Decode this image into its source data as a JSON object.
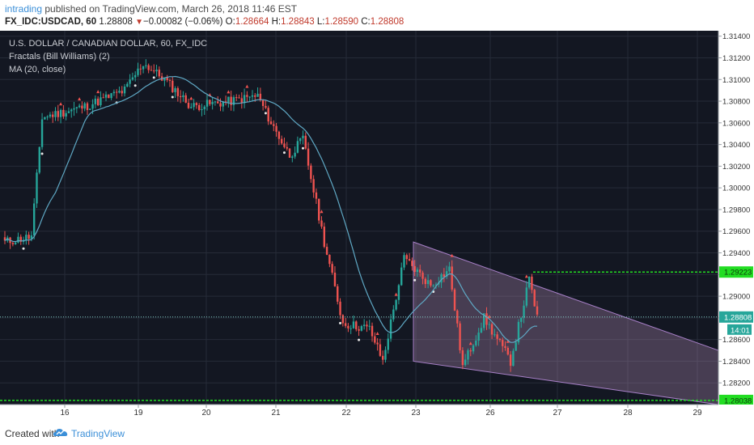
{
  "header": {
    "user": "intrading",
    "published": " published on TradingView.com, March 26, 2018 11:46 EST",
    "symbol": "FX_IDC:USDCAD, 60",
    "last": "1.28808",
    "arrow": "▼",
    "change": "−0.00082 (−0.06%)",
    "o_label": "O:",
    "o_value": "1.28664",
    "h_label": "H:",
    "h_value": "1.28843",
    "l_label": "L:",
    "l_value": "1.28590",
    "c_label": "C:",
    "c_value": "1.28808"
  },
  "legend": {
    "title": "U.S. DOLLAR / CANADIAN DOLLAR, 60, FX_IDC",
    "indicator1": "Fractals (Bill Williams) (2)",
    "indicator2": "MA (20, close)"
  },
  "footer": {
    "created": "Created with",
    "brand": "TradingView",
    "logo": "tradingview-cloud-icon"
  },
  "colors": {
    "background": "#131722",
    "grid": "#262b38",
    "up": "#26a69a",
    "down": "#ef5350",
    "ma": "#5fa8c4",
    "channel_fill": "#b98fb6",
    "channel_line": "#a880c8",
    "level_green": "#22dd22",
    "price_line": "#7fc8c0",
    "axis_text": "#c9ccd2"
  },
  "chart_data": {
    "type": "candlestick",
    "x_tick_labels": [
      "16",
      "19",
      "20",
      "21",
      "22",
      "23",
      "26",
      "27",
      "28",
      "29"
    ],
    "y_tick_labels": [
      "1.31400",
      "1.31200",
      "1.31000",
      "1.30800",
      "1.30600",
      "1.30400",
      "1.30200",
      "1.30000",
      "1.29800",
      "1.29600",
      "1.29400",
      "1.29200",
      "1.29000",
      "1.28800",
      "1.28600",
      "1.28400",
      "1.28200"
    ],
    "ylim": [
      1.28,
      1.3145
    ],
    "key_points": [
      {
        "bar": 0,
        "price": 1.295
      },
      {
        "bar": 10,
        "price": 1.2955
      },
      {
        "bar": 14,
        "price": 1.3065
      },
      {
        "bar": 30,
        "price": 1.3075
      },
      {
        "bar": 45,
        "price": 1.309
      },
      {
        "bar": 52,
        "price": 1.3115
      },
      {
        "bar": 60,
        "price": 1.31
      },
      {
        "bar": 70,
        "price": 1.3075
      },
      {
        "bar": 85,
        "price": 1.308
      },
      {
        "bar": 95,
        "price": 1.3085
      },
      {
        "bar": 100,
        "price": 1.306
      },
      {
        "bar": 107,
        "price": 1.303
      },
      {
        "bar": 112,
        "price": 1.3045
      },
      {
        "bar": 120,
        "price": 1.295
      },
      {
        "bar": 127,
        "price": 1.2875
      },
      {
        "bar": 137,
        "price": 1.287
      },
      {
        "bar": 142,
        "price": 1.284
      },
      {
        "bar": 150,
        "price": 1.2935
      },
      {
        "bar": 160,
        "price": 1.291
      },
      {
        "bar": 167,
        "price": 1.2925
      },
      {
        "bar": 172,
        "price": 1.2835
      },
      {
        "bar": 180,
        "price": 1.288
      },
      {
        "bar": 190,
        "price": 1.284
      },
      {
        "bar": 197,
        "price": 1.2915
      },
      {
        "bar": 200,
        "price": 1.2881
      }
    ],
    "channel": {
      "upper": [
        [
          1.295,
          0
        ],
        [
          1.285,
          1
        ]
      ],
      "lower": [
        [
          1.284,
          0
        ],
        [
          1.28,
          1
        ]
      ]
    },
    "levels": [
      {
        "price": 1.29223,
        "label": "1.29223",
        "color": "#22dd22"
      },
      {
        "price": 1.28038,
        "label": "1.28038",
        "color": "#22dd22"
      },
      {
        "price": 1.28808,
        "label": "1.28808",
        "color": "#26a69a"
      }
    ],
    "countdown": "14:01",
    "ma_period": 20
  }
}
